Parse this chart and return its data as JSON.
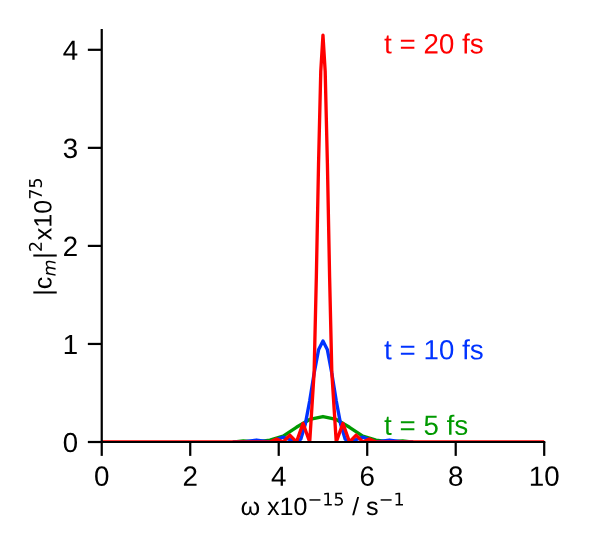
{
  "chart_data": {
    "type": "line",
    "xlabel": "ω x10$^{−15}$ / s$^{−1}$",
    "ylabel": "|c$_{m}$|$^{2}$x10$^{75}$",
    "xlim": [
      0,
      10
    ],
    "xticks": [
      0,
      2,
      4,
      6,
      8,
      10
    ],
    "ylim": [
      0,
      4.2
    ],
    "yticks": [
      0,
      1,
      2,
      3,
      4
    ],
    "grid": false,
    "legend": false,
    "marker": "none",
    "line_style": "solid",
    "series": [
      {
        "name": "t = 5 fs",
        "color": "#009900",
        "x": [
          3,
          3.2,
          3.5,
          3.8,
          4.1,
          4.4,
          4.7,
          5,
          5.3,
          5.6,
          5.9,
          6.2,
          6.5,
          6.8,
          7
        ],
        "values": [
          0,
          0.01,
          0,
          0.02,
          0.06,
          0.15,
          0.23,
          0.26,
          0.23,
          0.15,
          0.06,
          0.02,
          0,
          0.01,
          0
        ]
      },
      {
        "name": "t = 10 fs",
        "color": "#0033ff",
        "x": [
          3,
          3.2,
          3.5,
          3.8,
          4.1,
          4.4,
          4.5,
          4.6,
          4.7,
          4.8,
          4.9,
          5,
          5.1,
          5.2,
          5.3,
          5.4,
          5.5,
          5.6,
          5.9,
          6.2,
          6.5,
          6.8,
          7
        ],
        "values": [
          0,
          0,
          0.02,
          0,
          0.05,
          0,
          0.03,
          0.18,
          0.42,
          0.7,
          0.94,
          1.03,
          0.94,
          0.7,
          0.42,
          0.18,
          0.03,
          0,
          0.05,
          0,
          0.02,
          0,
          0
        ]
      },
      {
        "name": "t = 20 fs",
        "color": "#ff0000",
        "x": [
          0,
          3.8,
          3.95,
          4.1,
          4.25,
          4.4,
          4.55,
          4.7,
          4.8,
          4.85,
          4.9,
          4.95,
          5,
          5.05,
          5.1,
          5.15,
          5.2,
          5.3,
          5.45,
          5.6,
          5.75,
          5.9,
          6.05,
          6.2,
          10
        ],
        "values": [
          0,
          0,
          0.03,
          0,
          0.07,
          0,
          0.19,
          0,
          0.71,
          1.68,
          2.84,
          3.78,
          4.15,
          3.78,
          2.84,
          1.68,
          0.71,
          0,
          0.19,
          0,
          0.07,
          0,
          0.03,
          0,
          0
        ]
      }
    ]
  }
}
